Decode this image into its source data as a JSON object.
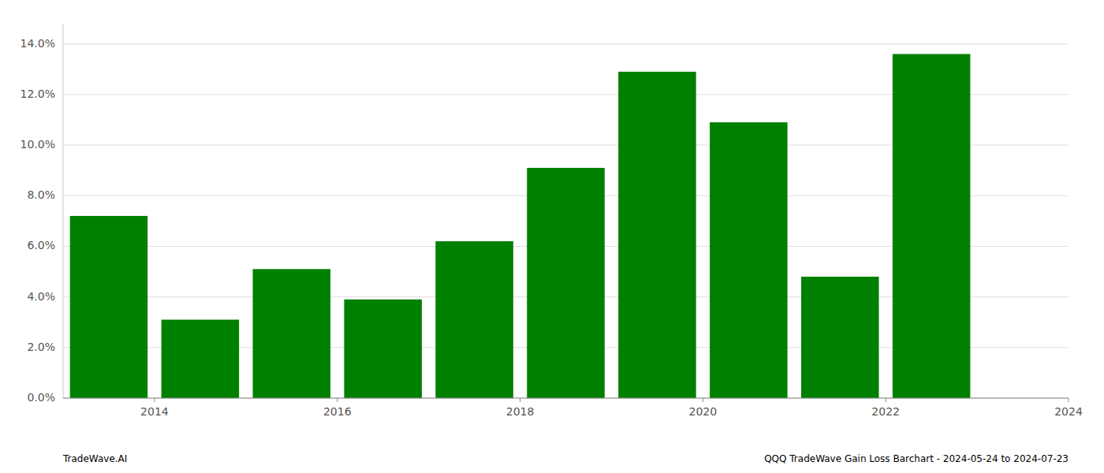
{
  "chart_data": {
    "type": "bar",
    "x": [
      2014,
      2015,
      2016,
      2017,
      2018,
      2019,
      2020,
      2021,
      2022,
      2023
    ],
    "values": [
      0.072,
      0.031,
      0.051,
      0.039,
      0.062,
      0.091,
      0.129,
      0.109,
      0.048,
      0.136
    ],
    "color": "#008000",
    "xlim": [
      2013.5,
      2024.5
    ],
    "xticks": [
      {
        "value": 2014.5,
        "label": "2014"
      },
      {
        "value": 2016.5,
        "label": "2016"
      },
      {
        "value": 2018.5,
        "label": "2018"
      },
      {
        "value": 2020.5,
        "label": "2020"
      },
      {
        "value": 2022.5,
        "label": "2022"
      },
      {
        "value": 2024.5,
        "label": "2024"
      }
    ],
    "ylim": [
      0,
      0.148
    ],
    "yticks": [
      {
        "value": 0.0,
        "label": "0.0%"
      },
      {
        "value": 0.02,
        "label": "2.0%"
      },
      {
        "value": 0.04,
        "label": "4.0%"
      },
      {
        "value": 0.06,
        "label": "6.0%"
      },
      {
        "value": 0.08,
        "label": "8.0%"
      },
      {
        "value": 0.1,
        "label": "10.0%"
      },
      {
        "value": 0.12,
        "label": "12.0%"
      },
      {
        "value": 0.14,
        "label": "14.0%"
      }
    ],
    "grid": true,
    "annotations": [
      "TradeWave.AI",
      "QQQ TradeWave Gain Loss Barchart - 2024-05-24 to 2024-07-23"
    ]
  }
}
